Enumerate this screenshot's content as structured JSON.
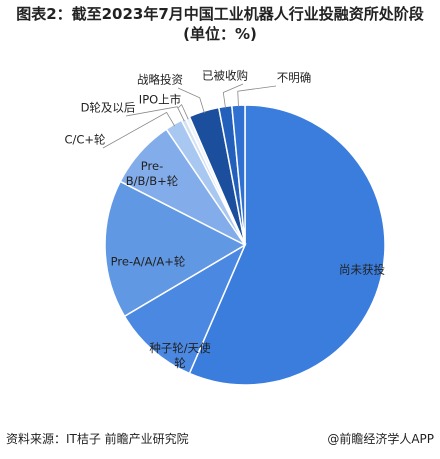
{
  "chart_data": {
    "type": "pie",
    "title": "图表2：截至2023年7月中国工业机器人行业投融资所处阶段(单位：%)",
    "categories": [
      "尚未获投",
      "种子轮/天使轮",
      "Pre-A/A/A+轮",
      "Pre-B/B/B+轮",
      "C/C+轮",
      "D轮及以后",
      "IPO上市",
      "战略投资",
      "已被收购",
      "不明确"
    ],
    "values": [
      56.5,
      10,
      16,
      8,
      2,
      0.5,
      0.5,
      3.5,
      1.5,
      1.5
    ],
    "colors": [
      "#3b7ddd",
      "#4a88e2",
      "#6198e3",
      "#83adea",
      "#a8c7f1",
      "#d2e1f6",
      "#eef3fb",
      "#1b4f9e",
      "#2360bb",
      "#2f70d0"
    ],
    "source": "资料来源：IT桔子 前瞻产业研究院",
    "brand": "@前瞻经济学人APP"
  }
}
